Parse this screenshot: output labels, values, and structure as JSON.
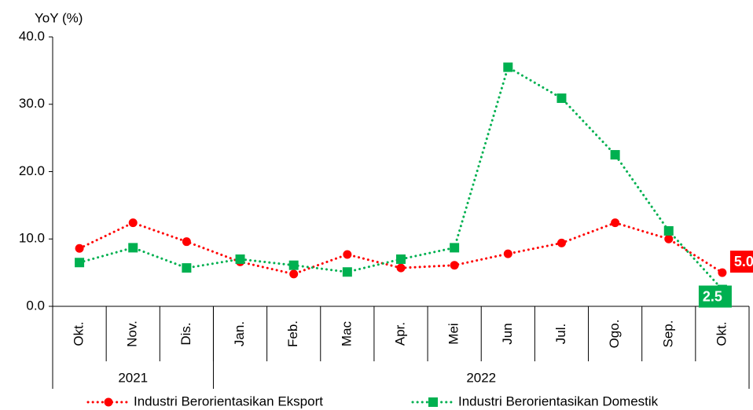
{
  "chart_data": {
    "type": "line",
    "ylabel": "YoY (%)",
    "categories": [
      "Okt.",
      "Nov.",
      "Dis.",
      "Jan.",
      "Feb.",
      "Mac",
      "Apr.",
      "Mei",
      "Jun",
      "Jul.",
      "Ogo.",
      "Sep.",
      "Okt."
    ],
    "year_groups": [
      {
        "label": "2021",
        "first": 0,
        "last": 2
      },
      {
        "label": "2022",
        "first": 3,
        "last": 12
      }
    ],
    "series": [
      {
        "name": "Industri Berorientasikan Eksport",
        "color": "#ff0000",
        "marker": "circle",
        "values": [
          8.6,
          12.4,
          9.6,
          6.6,
          4.8,
          7.7,
          5.7,
          6.1,
          7.8,
          9.4,
          12.4,
          10.0,
          5.0
        ],
        "value_labels": [
          null,
          null,
          null,
          null,
          null,
          null,
          null,
          null,
          null,
          null,
          null,
          null,
          "5.0"
        ]
      },
      {
        "name": "Industri Berorientasikan Domestik",
        "color": "#00b050",
        "marker": "square",
        "values": [
          6.5,
          8.7,
          5.7,
          7.0,
          6.1,
          5.1,
          7.0,
          8.7,
          35.5,
          30.9,
          22.5,
          11.2,
          2.5
        ],
        "value_labels": [
          null,
          null,
          null,
          null,
          null,
          null,
          null,
          null,
          null,
          null,
          null,
          null,
          "2.5"
        ]
      }
    ],
    "ylim": [
      0,
      40
    ],
    "yticks": [
      {
        "value": 0,
        "label": "0.0"
      },
      {
        "value": 10,
        "label": "10.0"
      },
      {
        "value": 20,
        "label": "20.0"
      },
      {
        "value": 30,
        "label": "30.0"
      },
      {
        "value": 40,
        "label": "40.0"
      }
    ],
    "grid": false,
    "legend": "bottom"
  }
}
